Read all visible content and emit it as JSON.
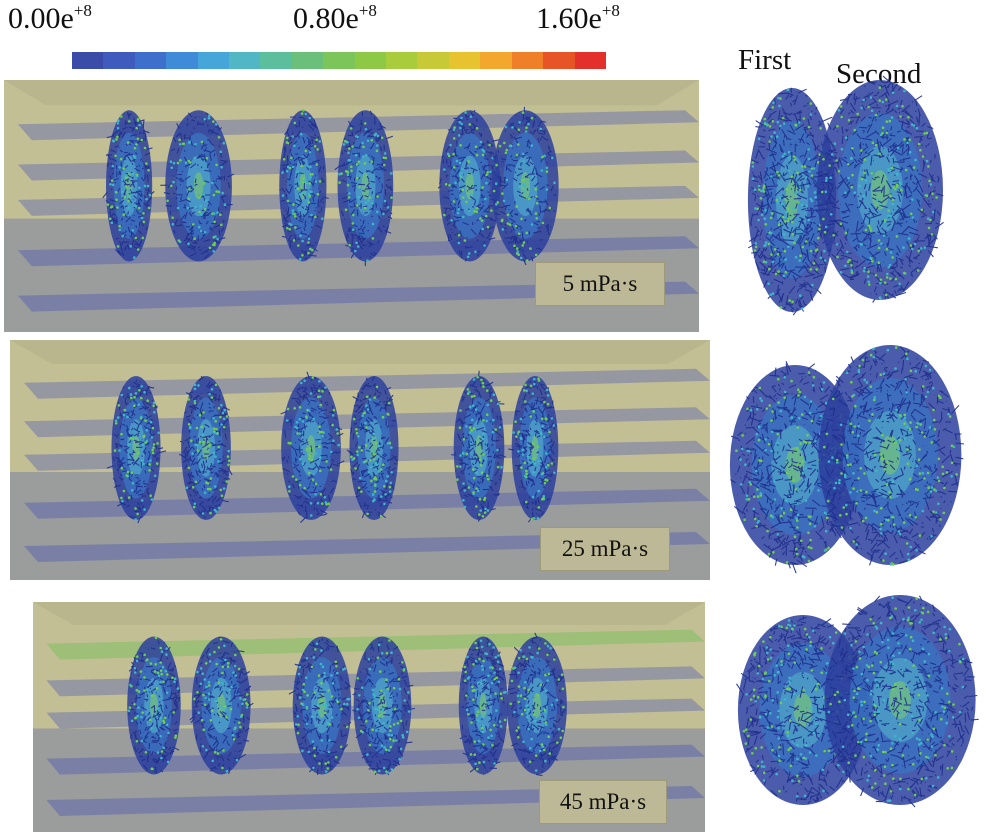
{
  "colorbar": {
    "min_label": "0.00e",
    "mid_label": "0.80e",
    "max_label": "1.60e",
    "exponent": "+8",
    "colors": [
      "#3b4ba8",
      "#3e5bbd",
      "#3f6fcc",
      "#3f8bd8",
      "#46a5d9",
      "#52b7c4",
      "#5bbf9e",
      "#6ac07a",
      "#7cc55a",
      "#8ec945",
      "#a8cc3c",
      "#c7c937",
      "#e7c330",
      "#f3a72c",
      "#ef7f28",
      "#e75426",
      "#e3302a"
    ]
  },
  "panels": [
    {
      "viscosity": "5 mPa·s"
    },
    {
      "viscosity": "25 mPa·s"
    },
    {
      "viscosity": "45 mPa·s"
    }
  ],
  "side": {
    "first_label": "First",
    "second_label": "Second"
  }
}
